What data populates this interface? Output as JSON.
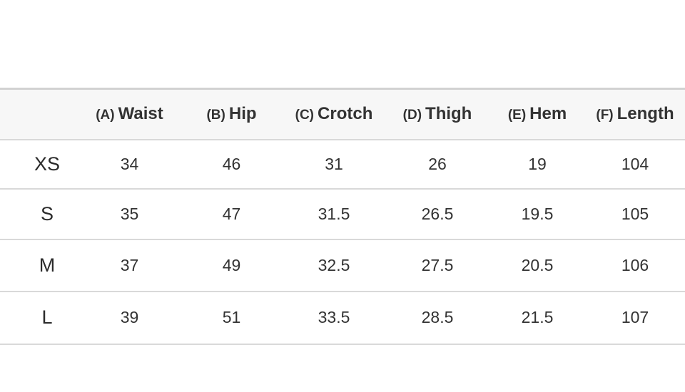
{
  "size_chart": {
    "columns": [
      {
        "letter": "(A)",
        "name": "Waist"
      },
      {
        "letter": "(B)",
        "name": "Hip"
      },
      {
        "letter": "(C)",
        "name": "Crotch"
      },
      {
        "letter": "(D)",
        "name": "Thigh"
      },
      {
        "letter": "(E)",
        "name": "Hem"
      },
      {
        "letter": "(F)",
        "name": "Length"
      }
    ],
    "rows": [
      {
        "size": "XS",
        "values": [
          "34",
          "46",
          "31",
          "26",
          "19",
          "104"
        ]
      },
      {
        "size": "S",
        "values": [
          "35",
          "47",
          "31.5",
          "26.5",
          "19.5",
          "105"
        ]
      },
      {
        "size": "M",
        "values": [
          "37",
          "49",
          "32.5",
          "27.5",
          "20.5",
          "106"
        ]
      },
      {
        "size": "L",
        "values": [
          "39",
          "51",
          "33.5",
          "28.5",
          "21.5",
          "107"
        ]
      }
    ]
  }
}
